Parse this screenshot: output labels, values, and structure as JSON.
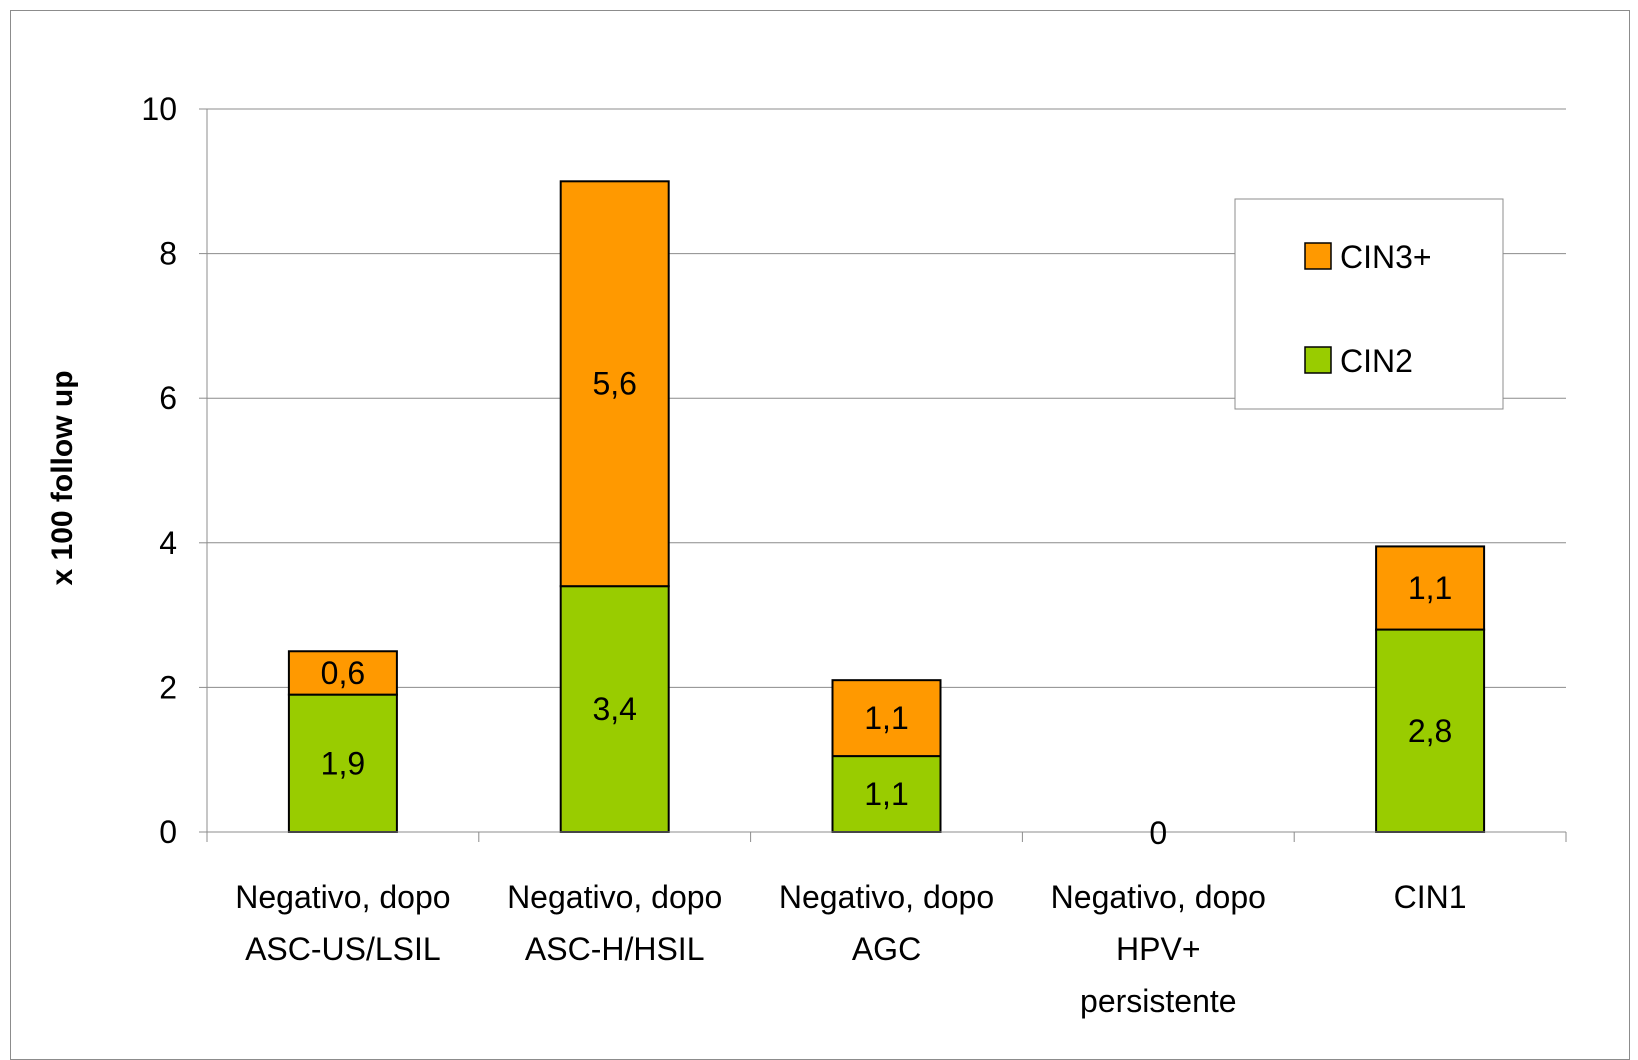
{
  "chart_data": {
    "type": "bar",
    "stacked": true,
    "title": "",
    "xlabel": "",
    "ylabel": "x 100 follow up",
    "ylim": [
      0,
      10
    ],
    "yticks": [
      "0",
      "2",
      "4",
      "6",
      "8",
      "10"
    ],
    "grid": true,
    "legend_position": "top-right",
    "categories": [
      [
        "Negativo, dopo",
        "ASC-US/LSIL"
      ],
      [
        "Negativo, dopo",
        "ASC-H/HSIL"
      ],
      [
        "Negativo, dopo",
        "AGC"
      ],
      [
        "Negativo, dopo",
        "HPV+",
        "persistente"
      ],
      [
        "CIN1"
      ]
    ],
    "series": [
      {
        "name": "CIN2",
        "color": "#99cc00",
        "values": [
          1.9,
          3.4,
          1.05,
          0,
          2.8
        ],
        "labels": [
          "1,9",
          "3,4",
          "1,1",
          "",
          "2,8"
        ]
      },
      {
        "name": "CIN3+",
        "color": "#ff9900",
        "values": [
          0.6,
          5.6,
          1.05,
          0,
          1.15
        ],
        "labels": [
          "0,6",
          "5,6",
          "1,1",
          "",
          "1,1"
        ]
      }
    ],
    "zero_labels": [
      "",
      "",
      "",
      "0",
      ""
    ]
  }
}
